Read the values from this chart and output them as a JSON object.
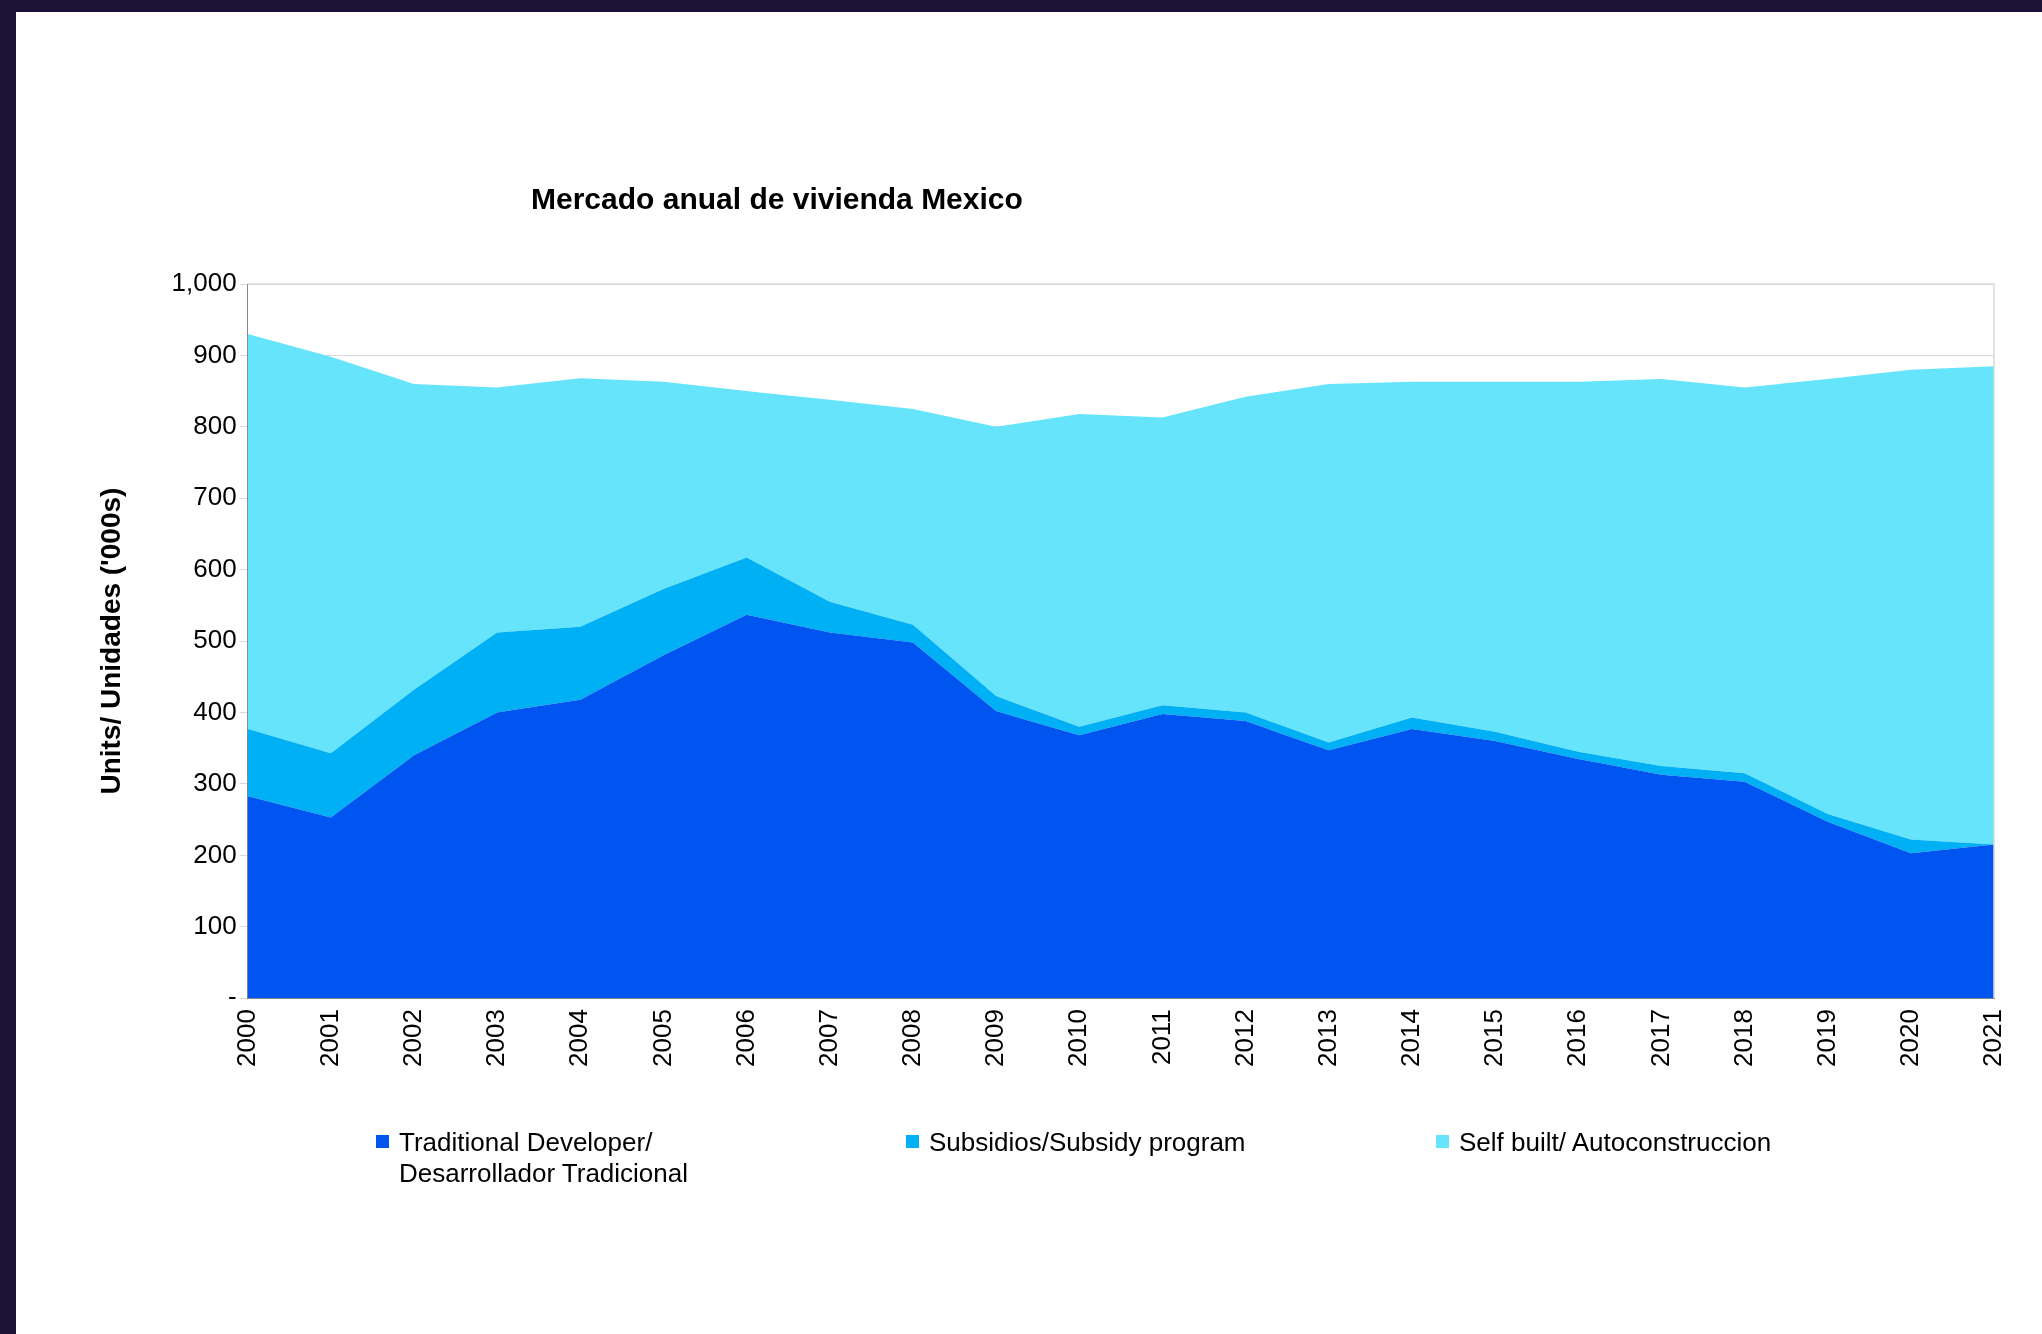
{
  "chart_data": {
    "type": "area",
    "title": "Mercado anual de vivienda Mexico",
    "ylabel": "Units/ Unidades ('000s)",
    "stacked": true,
    "categories": [
      "2000",
      "2001",
      "2002",
      "2003",
      "2004",
      "2005",
      "2006",
      "2007",
      "2008",
      "2009",
      "2010",
      "2011",
      "2012",
      "2013",
      "2014",
      "2015",
      "2016",
      "2017",
      "2018",
      "2019",
      "2020",
      "2021"
    ],
    "series": [
      {
        "name": "Traditional Developer/ Desarrollador Tradicional",
        "color": "#0055f0",
        "values": [
          283,
          253,
          340,
          400,
          418,
          480,
          537,
          512,
          498,
          402,
          368,
          398,
          388,
          347,
          377,
          360,
          335,
          313,
          303,
          247,
          203,
          215
        ]
      },
      {
        "name": "Subsidios/Subsidy program",
        "color": "#00b0f5",
        "values": [
          94,
          90,
          92,
          112,
          102,
          93,
          80,
          43,
          25,
          21,
          12,
          12,
          12,
          11,
          16,
          13,
          10,
          12,
          12,
          11,
          19,
          0
        ]
      },
      {
        "name": "Self built/ Autoconstruccion",
        "color": "#66e4fc",
        "values": [
          553,
          555,
          428,
          343,
          348,
          290,
          233,
          283,
          302,
          377,
          438,
          403,
          442,
          502,
          470,
          490,
          518,
          542,
          540,
          609,
          658,
          670
        ]
      }
    ],
    "ylim": [
      0,
      1000
    ],
    "yticks": [
      {
        "value": 0,
        "label": "-"
      },
      100,
      200,
      300,
      400,
      500,
      600,
      700,
      800,
      900,
      {
        "value": 1000,
        "label": "1,000"
      }
    ],
    "grid": "y",
    "legend": "bottom"
  }
}
